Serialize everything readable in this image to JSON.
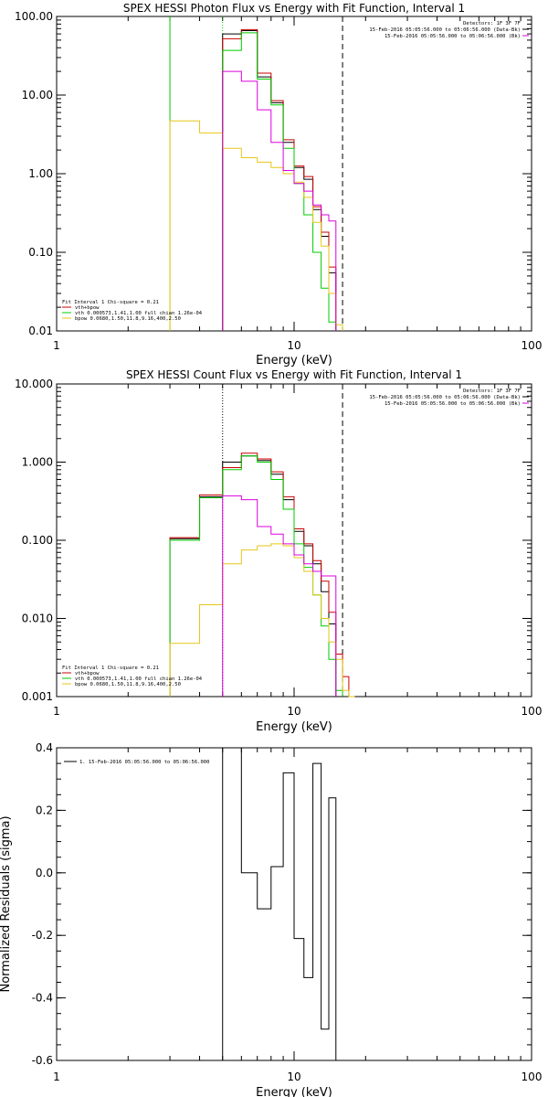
{
  "colors": {
    "total": "#000000",
    "fit": "#cc0000",
    "vth": "#00cc00",
    "bpow": "#e6c619",
    "bk": "#dd00dd",
    "axis": "#000000"
  },
  "chart_data": [
    {
      "type": "line",
      "title": "SPEX HESSI Photon Flux vs Energy with Fit Function, Interval 1",
      "xlabel": "Energy (keV)",
      "ylabel": "",
      "xscale": "log",
      "yscale": "log",
      "xlim": [
        1,
        100
      ],
      "ylim": [
        0.01,
        100
      ],
      "xticks": [
        {
          "v": 1,
          "label": "1"
        },
        {
          "v": 10,
          "label": "10"
        },
        {
          "v": 100,
          "label": "100"
        }
      ],
      "yticks": [
        {
          "v": 0.01,
          "label": "0.01"
        },
        {
          "v": 0.1,
          "label": "0.10"
        },
        {
          "v": 1,
          "label": "1.00"
        },
        {
          "v": 10,
          "label": "10.00"
        },
        {
          "v": 100,
          "label": "100.00"
        }
      ],
      "info": [
        "Detectors: 1F 3F 7F",
        "15-Feb-2016 05:05:56.000 to 05:06:56.000 (Data-Bk)",
        "15-Feb-2016 05:05:56.000 to 05:06:56.000 (Bk)"
      ],
      "legend": [
        "Fit Interval 1    Chi-square = 0.21",
        "vth+bpow",
        "vth 0.000573,1.41,1.00  full chian 1.26e-04",
        "bpow 0.0680,1.50,11.8,9.16,400,2.50"
      ],
      "vlines": [
        {
          "x": 3.0,
          "style": "solid",
          "color": "vth"
        },
        {
          "x": 5.0,
          "style": "dotted",
          "color": "vth"
        },
        {
          "x": 16.0,
          "style": "dashed",
          "color": "total"
        }
      ],
      "edges": [
        3.0,
        4.0,
        5.0,
        6.0,
        7.0,
        8.0,
        9.0,
        10.0,
        11.0,
        12.0,
        13.0,
        14.0,
        15.0,
        16.0,
        17.0,
        18.0
      ],
      "series": [
        {
          "name": "vth+bpow",
          "color": "total",
          "values": [
            null,
            null,
            60,
            66,
            17,
            8,
            2.5,
            1.2,
            0.85,
            0.35,
            0.16,
            0.055,
            null,
            null,
            null
          ]
        },
        {
          "name": "vth+bpow",
          "color": "fit",
          "values": [
            null,
            null,
            52,
            68,
            19,
            8.5,
            2.7,
            1.25,
            0.92,
            0.38,
            0.18,
            0.065,
            null,
            null,
            null
          ]
        },
        {
          "name": "vth",
          "color": "vth",
          "values": [
            null,
            null,
            37,
            62,
            16,
            7.5,
            2.1,
            0.75,
            0.3,
            0.1,
            0.035,
            0.013,
            null,
            null,
            null
          ]
        },
        {
          "name": "bpow",
          "color": "bpow",
          "values": [
            4.7,
            3.3,
            2.1,
            1.6,
            1.4,
            1.2,
            1.0,
            0.78,
            0.5,
            0.24,
            0.12,
            0.03,
            0.012,
            null,
            null
          ]
        },
        {
          "name": "Bk",
          "color": "bk",
          "values": [
            null,
            null,
            20,
            15,
            6.5,
            2.5,
            1.1,
            0.75,
            0.6,
            0.4,
            0.3,
            0.25,
            null,
            null,
            null
          ]
        }
      ]
    },
    {
      "type": "line",
      "title": "SPEX HESSI Count Flux vs Energy with Fit Function, Interval 1",
      "xlabel": "Energy (keV)",
      "ylabel": "",
      "xscale": "log",
      "yscale": "log",
      "xlim": [
        1,
        100
      ],
      "ylim": [
        0.001,
        10
      ],
      "xticks": [
        {
          "v": 1,
          "label": "1"
        },
        {
          "v": 10,
          "label": "10"
        },
        {
          "v": 100,
          "label": "100"
        }
      ],
      "yticks": [
        {
          "v": 0.001,
          "label": "0.001"
        },
        {
          "v": 0.01,
          "label": "0.010"
        },
        {
          "v": 0.1,
          "label": "0.100"
        },
        {
          "v": 1,
          "label": "1.000"
        },
        {
          "v": 10,
          "label": "10.000"
        }
      ],
      "info": [
        "Detectors: 1F 3F 7F",
        "15-Feb-2016 05:05:56.000 to 05:06:56.000 (Data-Bk)",
        "15-Feb-2016 05:05:56.000 to 05:06:56.000 (Bk)"
      ],
      "legend": [
        "Fit Interval 1    Chi-square = 0.21",
        "vth+bpow",
        "vth 0.000573,1.41,1.00  full chian 1.26e-04",
        "bpow 0.0680,1.50,11.8,9.16,400,2.50"
      ],
      "vlines": [
        {
          "x": 5.0,
          "style": "dotted",
          "color": "total"
        },
        {
          "x": 16.0,
          "style": "dashed",
          "color": "total"
        }
      ],
      "edges": [
        3.0,
        4.0,
        5.0,
        6.0,
        7.0,
        8.0,
        9.0,
        10.0,
        11.0,
        12.0,
        13.0,
        14.0,
        15.0,
        16.0,
        17.0,
        18.0,
        19.0
      ],
      "series": [
        {
          "name": "vth+bpow",
          "color": "total",
          "values": [
            0.105,
            0.36,
            1.0,
            1.2,
            1.05,
            0.7,
            0.33,
            0.13,
            0.085,
            0.05,
            0.022,
            0.0085,
            null,
            null,
            null,
            null
          ]
        },
        {
          "name": "vth+bpow",
          "color": "fit",
          "values": [
            0.108,
            0.38,
            0.85,
            1.3,
            1.1,
            0.75,
            0.36,
            0.14,
            0.09,
            0.055,
            0.03,
            0.012,
            0.0035,
            0.0018,
            0.001,
            null
          ]
        },
        {
          "name": "vth",
          "color": "vth",
          "values": [
            0.1,
            0.35,
            0.8,
            1.2,
            1.0,
            0.6,
            0.25,
            0.09,
            0.045,
            0.02,
            0.008,
            0.003,
            0.0012,
            null,
            null,
            null
          ]
        },
        {
          "name": "bpow",
          "color": "bpow",
          "values": [
            0.0048,
            0.015,
            0.05,
            0.075,
            0.085,
            0.09,
            0.085,
            0.06,
            0.04,
            0.02,
            0.01,
            0.005,
            0.003,
            0.0012,
            0.001,
            null
          ]
        },
        {
          "name": "Bk",
          "color": "bk",
          "values": [
            null,
            null,
            0.37,
            0.33,
            0.15,
            0.12,
            0.09,
            0.065,
            0.05,
            0.04,
            0.035,
            0.035,
            null,
            null,
            null,
            null
          ]
        }
      ]
    },
    {
      "type": "line",
      "title": "",
      "xlabel": "Energy (keV)",
      "ylabel": "Normalized Residuals (sigma)",
      "xscale": "log",
      "yscale": "linear",
      "xlim": [
        1,
        100
      ],
      "ylim": [
        -0.6,
        0.4
      ],
      "xticks": [
        {
          "v": 1,
          "label": "1"
        },
        {
          "v": 10,
          "label": "10"
        },
        {
          "v": 100,
          "label": "100"
        }
      ],
      "yticks": [
        {
          "v": 0.4,
          "label": "0.4"
        },
        {
          "v": 0.2,
          "label": "0.2"
        },
        {
          "v": 0.0,
          "label": "0.0"
        },
        {
          "v": -0.2,
          "label": "-0.2"
        },
        {
          "v": -0.4,
          "label": "-0.4"
        },
        {
          "v": -0.6,
          "label": "-0.6"
        }
      ],
      "info": [],
      "legend": [
        "1. 15-Feb-2016 05:05:56.000 to 05:06:56.000"
      ],
      "vlines": [],
      "edges": [
        5.0,
        6.0,
        7.0,
        8.0,
        9.0,
        10.0,
        11.0,
        12.0,
        13.0,
        14.0,
        15.0,
        16.0,
        17.0
      ],
      "series": [
        {
          "name": "1. 15-Feb-2016 05:05:56.000 to 05:06:56.000",
          "color": "total",
          "values": [
            0.4,
            0.0,
            -0.115,
            0.02,
            0.32,
            -0.21,
            -0.335,
            0.35,
            -0.5,
            0.24,
            null,
            null
          ]
        }
      ]
    }
  ]
}
